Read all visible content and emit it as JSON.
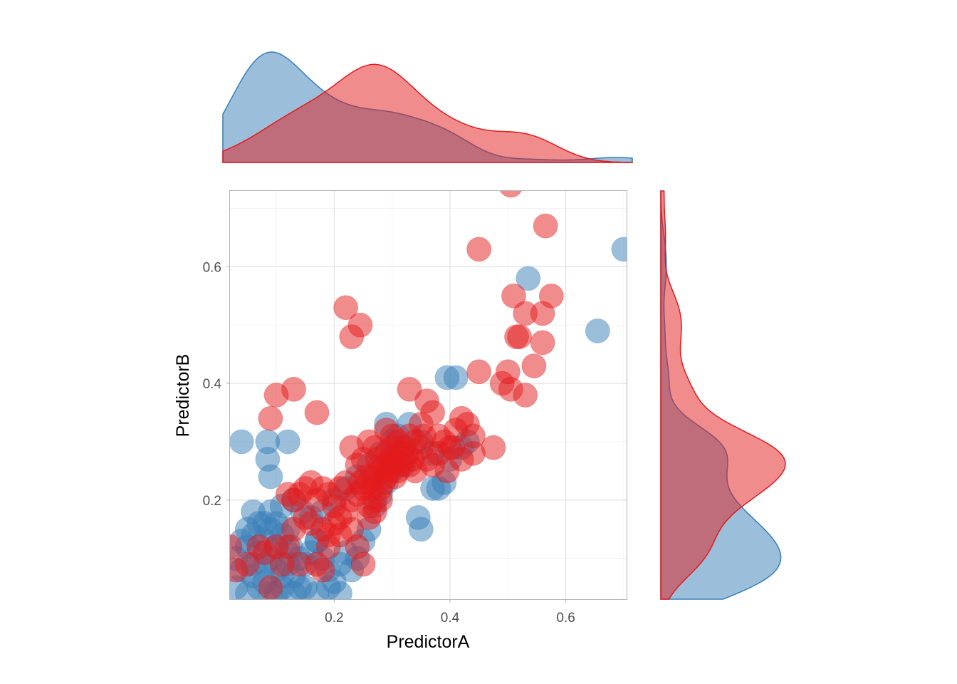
{
  "chart_data": {
    "type": "scatter",
    "title": "",
    "xlabel": "PredictorA",
    "ylabel": "PredictorB",
    "xlim": [
      0.02,
      0.705
    ],
    "ylim": [
      0.03,
      0.73
    ],
    "x_ticks": [
      0.2,
      0.4,
      0.6
    ],
    "y_ticks": [
      0.2,
      0.4,
      0.6
    ],
    "x_tick_labels": [
      "0.2",
      "0.4",
      "0.6"
    ],
    "y_tick_labels": [
      "0.2",
      "0.4",
      "0.6"
    ],
    "grid": true,
    "legend": "none",
    "marginal_density": {
      "top": "PredictorA",
      "right": "PredictorB"
    },
    "series": [
      {
        "color": "#377EB8",
        "points": [
          [
            0.04,
            0.3
          ],
          [
            0.085,
            0.3
          ],
          [
            0.085,
            0.27
          ],
          [
            0.09,
            0.24
          ],
          [
            0.12,
            0.3
          ],
          [
            0.06,
            0.18
          ],
          [
            0.07,
            0.16
          ],
          [
            0.08,
            0.16
          ],
          [
            0.09,
            0.15
          ],
          [
            0.1,
            0.16
          ],
          [
            0.11,
            0.14
          ],
          [
            0.12,
            0.15
          ],
          [
            0.125,
            0.12
          ],
          [
            0.13,
            0.2
          ],
          [
            0.145,
            0.18
          ],
          [
            0.03,
            0.1
          ],
          [
            0.04,
            0.08
          ],
          [
            0.05,
            0.12
          ],
          [
            0.06,
            0.09
          ],
          [
            0.07,
            0.11
          ],
          [
            0.08,
            0.13
          ],
          [
            0.09,
            0.1
          ],
          [
            0.1,
            0.08
          ],
          [
            0.11,
            0.07
          ],
          [
            0.12,
            0.09
          ],
          [
            0.13,
            0.07
          ],
          [
            0.14,
            0.05
          ],
          [
            0.15,
            0.09
          ],
          [
            0.16,
            0.11
          ],
          [
            0.17,
            0.13
          ],
          [
            0.18,
            0.1
          ],
          [
            0.19,
            0.08
          ],
          [
            0.2,
            0.06
          ],
          [
            0.21,
            0.09
          ],
          [
            0.22,
            0.11
          ],
          [
            0.03,
            0.05
          ],
          [
            0.05,
            0.04
          ],
          [
            0.07,
            0.05
          ],
          [
            0.09,
            0.04
          ],
          [
            0.11,
            0.05
          ],
          [
            0.13,
            0.04
          ],
          [
            0.15,
            0.05
          ],
          [
            0.17,
            0.04
          ],
          [
            0.19,
            0.05
          ],
          [
            0.21,
            0.04
          ],
          [
            0.23,
            0.08
          ],
          [
            0.24,
            0.1
          ],
          [
            0.25,
            0.13
          ],
          [
            0.26,
            0.15
          ],
          [
            0.27,
            0.19
          ],
          [
            0.28,
            0.21
          ],
          [
            0.29,
            0.23
          ],
          [
            0.3,
            0.25
          ],
          [
            0.31,
            0.27
          ],
          [
            0.32,
            0.29
          ],
          [
            0.29,
            0.33
          ],
          [
            0.31,
            0.31
          ],
          [
            0.33,
            0.33
          ],
          [
            0.35,
            0.3
          ],
          [
            0.37,
            0.28
          ],
          [
            0.345,
            0.17
          ],
          [
            0.35,
            0.15
          ],
          [
            0.37,
            0.22
          ],
          [
            0.38,
            0.22
          ],
          [
            0.39,
            0.23
          ],
          [
            0.395,
            0.41
          ],
          [
            0.41,
            0.41
          ],
          [
            0.43,
            0.3
          ],
          [
            0.42,
            0.29
          ],
          [
            0.4,
            0.27
          ],
          [
            0.17,
            0.13
          ],
          [
            0.16,
            0.17
          ],
          [
            0.18,
            0.18
          ],
          [
            0.2,
            0.2
          ],
          [
            0.22,
            0.22
          ],
          [
            0.14,
            0.1
          ],
          [
            0.12,
            0.11
          ],
          [
            0.1,
            0.12
          ],
          [
            0.08,
            0.09
          ],
          [
            0.06,
            0.07
          ],
          [
            0.04,
            0.13
          ],
          [
            0.05,
            0.15
          ],
          [
            0.06,
            0.14
          ],
          [
            0.09,
            0.18
          ],
          [
            0.11,
            0.19
          ],
          [
            0.24,
            0.24
          ],
          [
            0.26,
            0.26
          ],
          [
            0.28,
            0.28
          ],
          [
            0.3,
            0.3
          ],
          [
            0.32,
            0.26
          ],
          [
            0.535,
            0.58
          ],
          [
            0.655,
            0.49
          ],
          [
            0.7,
            0.63
          ],
          [
            0.08,
            0.06
          ],
          [
            0.1,
            0.04
          ]
        ]
      },
      {
        "color": "#E41A1C",
        "points": [
          [
            0.505,
            0.74
          ],
          [
            0.565,
            0.67
          ],
          [
            0.45,
            0.63
          ],
          [
            0.22,
            0.53
          ],
          [
            0.245,
            0.5
          ],
          [
            0.23,
            0.48
          ],
          [
            0.51,
            0.55
          ],
          [
            0.575,
            0.55
          ],
          [
            0.53,
            0.52
          ],
          [
            0.56,
            0.52
          ],
          [
            0.515,
            0.48
          ],
          [
            0.52,
            0.48
          ],
          [
            0.56,
            0.47
          ],
          [
            0.45,
            0.42
          ],
          [
            0.5,
            0.42
          ],
          [
            0.545,
            0.43
          ],
          [
            0.49,
            0.4
          ],
          [
            0.505,
            0.39
          ],
          [
            0.53,
            0.38
          ],
          [
            0.1,
            0.38
          ],
          [
            0.13,
            0.39
          ],
          [
            0.33,
            0.39
          ],
          [
            0.09,
            0.34
          ],
          [
            0.17,
            0.35
          ],
          [
            0.475,
            0.29
          ],
          [
            0.42,
            0.34
          ],
          [
            0.43,
            0.33
          ],
          [
            0.44,
            0.31
          ],
          [
            0.41,
            0.32
          ],
          [
            0.36,
            0.37
          ],
          [
            0.37,
            0.35
          ],
          [
            0.35,
            0.33
          ],
          [
            0.38,
            0.31
          ],
          [
            0.39,
            0.3
          ],
          [
            0.4,
            0.29
          ],
          [
            0.34,
            0.3
          ],
          [
            0.33,
            0.31
          ],
          [
            0.32,
            0.29
          ],
          [
            0.31,
            0.28
          ],
          [
            0.3,
            0.27
          ],
          [
            0.29,
            0.26
          ],
          [
            0.28,
            0.25
          ],
          [
            0.27,
            0.24
          ],
          [
            0.26,
            0.23
          ],
          [
            0.25,
            0.22
          ],
          [
            0.24,
            0.21
          ],
          [
            0.23,
            0.2
          ],
          [
            0.22,
            0.23
          ],
          [
            0.21,
            0.22
          ],
          [
            0.2,
            0.19
          ],
          [
            0.19,
            0.21
          ],
          [
            0.18,
            0.22
          ],
          [
            0.17,
            0.2
          ],
          [
            0.16,
            0.23
          ],
          [
            0.15,
            0.22
          ],
          [
            0.14,
            0.21
          ],
          [
            0.13,
            0.2
          ],
          [
            0.12,
            0.21
          ],
          [
            0.13,
            0.15
          ],
          [
            0.15,
            0.17
          ],
          [
            0.16,
            0.16
          ],
          [
            0.18,
            0.15
          ],
          [
            0.19,
            0.14
          ],
          [
            0.2,
            0.16
          ],
          [
            0.21,
            0.17
          ],
          [
            0.22,
            0.18
          ],
          [
            0.23,
            0.15
          ],
          [
            0.24,
            0.12
          ],
          [
            0.25,
            0.09
          ],
          [
            0.26,
            0.17
          ],
          [
            0.27,
            0.2
          ],
          [
            0.28,
            0.22
          ],
          [
            0.29,
            0.24
          ],
          [
            0.3,
            0.29
          ],
          [
            0.31,
            0.3
          ],
          [
            0.32,
            0.27
          ],
          [
            0.33,
            0.26
          ],
          [
            0.34,
            0.25
          ],
          [
            0.36,
            0.27
          ],
          [
            0.37,
            0.26
          ],
          [
            0.38,
            0.28
          ],
          [
            0.395,
            0.25
          ],
          [
            0.405,
            0.29
          ],
          [
            0.42,
            0.27
          ],
          [
            0.44,
            0.28
          ],
          [
            0.29,
            0.32
          ],
          [
            0.3,
            0.31
          ],
          [
            0.27,
            0.29
          ],
          [
            0.26,
            0.3
          ],
          [
            0.25,
            0.27
          ],
          [
            0.24,
            0.26
          ],
          [
            0.23,
            0.29
          ],
          [
            0.28,
            0.2
          ],
          [
            0.27,
            0.18
          ],
          [
            0.26,
            0.19
          ],
          [
            0.1,
            0.12
          ],
          [
            0.08,
            0.11
          ],
          [
            0.07,
            0.12
          ],
          [
            0.09,
            0.05
          ],
          [
            0.12,
            0.12
          ],
          [
            0.14,
            0.09
          ],
          [
            0.17,
            0.09
          ],
          [
            0.19,
            0.12
          ],
          [
            0.21,
            0.14
          ],
          [
            0.02,
            0.12
          ],
          [
            0.03,
            0.08
          ],
          [
            0.05,
            0.09
          ],
          [
            0.18,
            0.08
          ],
          [
            0.11,
            0.09
          ],
          [
            0.28,
            0.26
          ],
          [
            0.29,
            0.28
          ],
          [
            0.3,
            0.26
          ],
          [
            0.31,
            0.25
          ],
          [
            0.285,
            0.23
          ],
          [
            0.265,
            0.22
          ],
          [
            0.255,
            0.24
          ],
          [
            0.245,
            0.23
          ],
          [
            0.275,
            0.27
          ],
          [
            0.295,
            0.25
          ],
          [
            0.305,
            0.24
          ],
          [
            0.315,
            0.26
          ],
          [
            0.325,
            0.28
          ],
          [
            0.335,
            0.27
          ],
          [
            0.35,
            0.29
          ],
          [
            0.355,
            0.31
          ]
        ]
      }
    ]
  }
}
